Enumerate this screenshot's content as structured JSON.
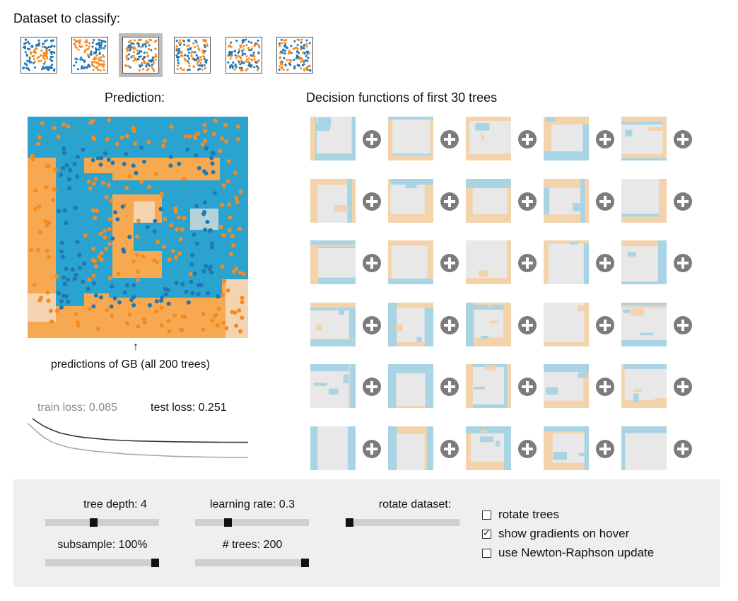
{
  "header": {
    "title": "Dataset to classify:"
  },
  "datasets": [
    {
      "name": "dataset-rings",
      "selected": false
    },
    {
      "name": "dataset-xor",
      "selected": false
    },
    {
      "name": "dataset-spiral-square",
      "selected": true
    },
    {
      "name": "dataset-concentric",
      "selected": false
    },
    {
      "name": "dataset-stripes",
      "selected": false
    },
    {
      "name": "dataset-circles",
      "selected": false
    }
  ],
  "prediction": {
    "title": "Prediction:",
    "arrow": "↑",
    "caption": "predictions of GB (all 200 trees)"
  },
  "loss": {
    "train_label": "train loss: 0.085",
    "test_label": "test loss: 0.251",
    "train_curve": [
      1.0,
      0.8,
      0.62,
      0.5,
      0.42,
      0.36,
      0.32,
      0.29,
      0.26,
      0.24,
      0.22,
      0.2,
      0.18,
      0.17,
      0.16,
      0.15,
      0.14,
      0.13,
      0.12,
      0.115,
      0.11,
      0.105,
      0.1,
      0.097,
      0.094,
      0.091,
      0.088,
      0.085
    ],
    "test_curve": [
      0.98,
      0.82,
      0.68,
      0.58,
      0.5,
      0.45,
      0.41,
      0.38,
      0.36,
      0.34,
      0.32,
      0.31,
      0.3,
      0.29,
      0.285,
      0.28,
      0.275,
      0.27,
      0.267,
      0.264,
      0.261,
      0.259,
      0.257,
      0.256,
      0.254,
      0.253,
      0.252,
      0.251
    ]
  },
  "trees": {
    "title": "Decision functions of first 30 trees",
    "count": 30
  },
  "controls": {
    "tree_depth": {
      "label": "tree depth: 4",
      "fraction": 0.42
    },
    "learning_rate": {
      "label": "learning rate: 0.3",
      "fraction": 0.27
    },
    "rotate_dataset": {
      "label": "rotate dataset:",
      "fraction": 0.0
    },
    "subsample": {
      "label": "subsample: 100%",
      "fraction": 1.0
    },
    "n_trees": {
      "label": "# trees: 200",
      "fraction": 1.0
    },
    "rotate_trees": {
      "label": "rotate trees",
      "checked": false
    },
    "show_gradients": {
      "label": "show gradients on hover",
      "checked": true
    },
    "newton": {
      "label": "use Newton-Raphson update",
      "checked": false
    }
  },
  "colors": {
    "blue": "#2aa3cf",
    "orange": "#f7a952",
    "point_blue": "#1f77b4",
    "point_orange": "#f58b1f",
    "light_blue": "#a9d4e3",
    "light_orange": "#f3d3ab",
    "gray_tile": "#e8e8e8"
  }
}
